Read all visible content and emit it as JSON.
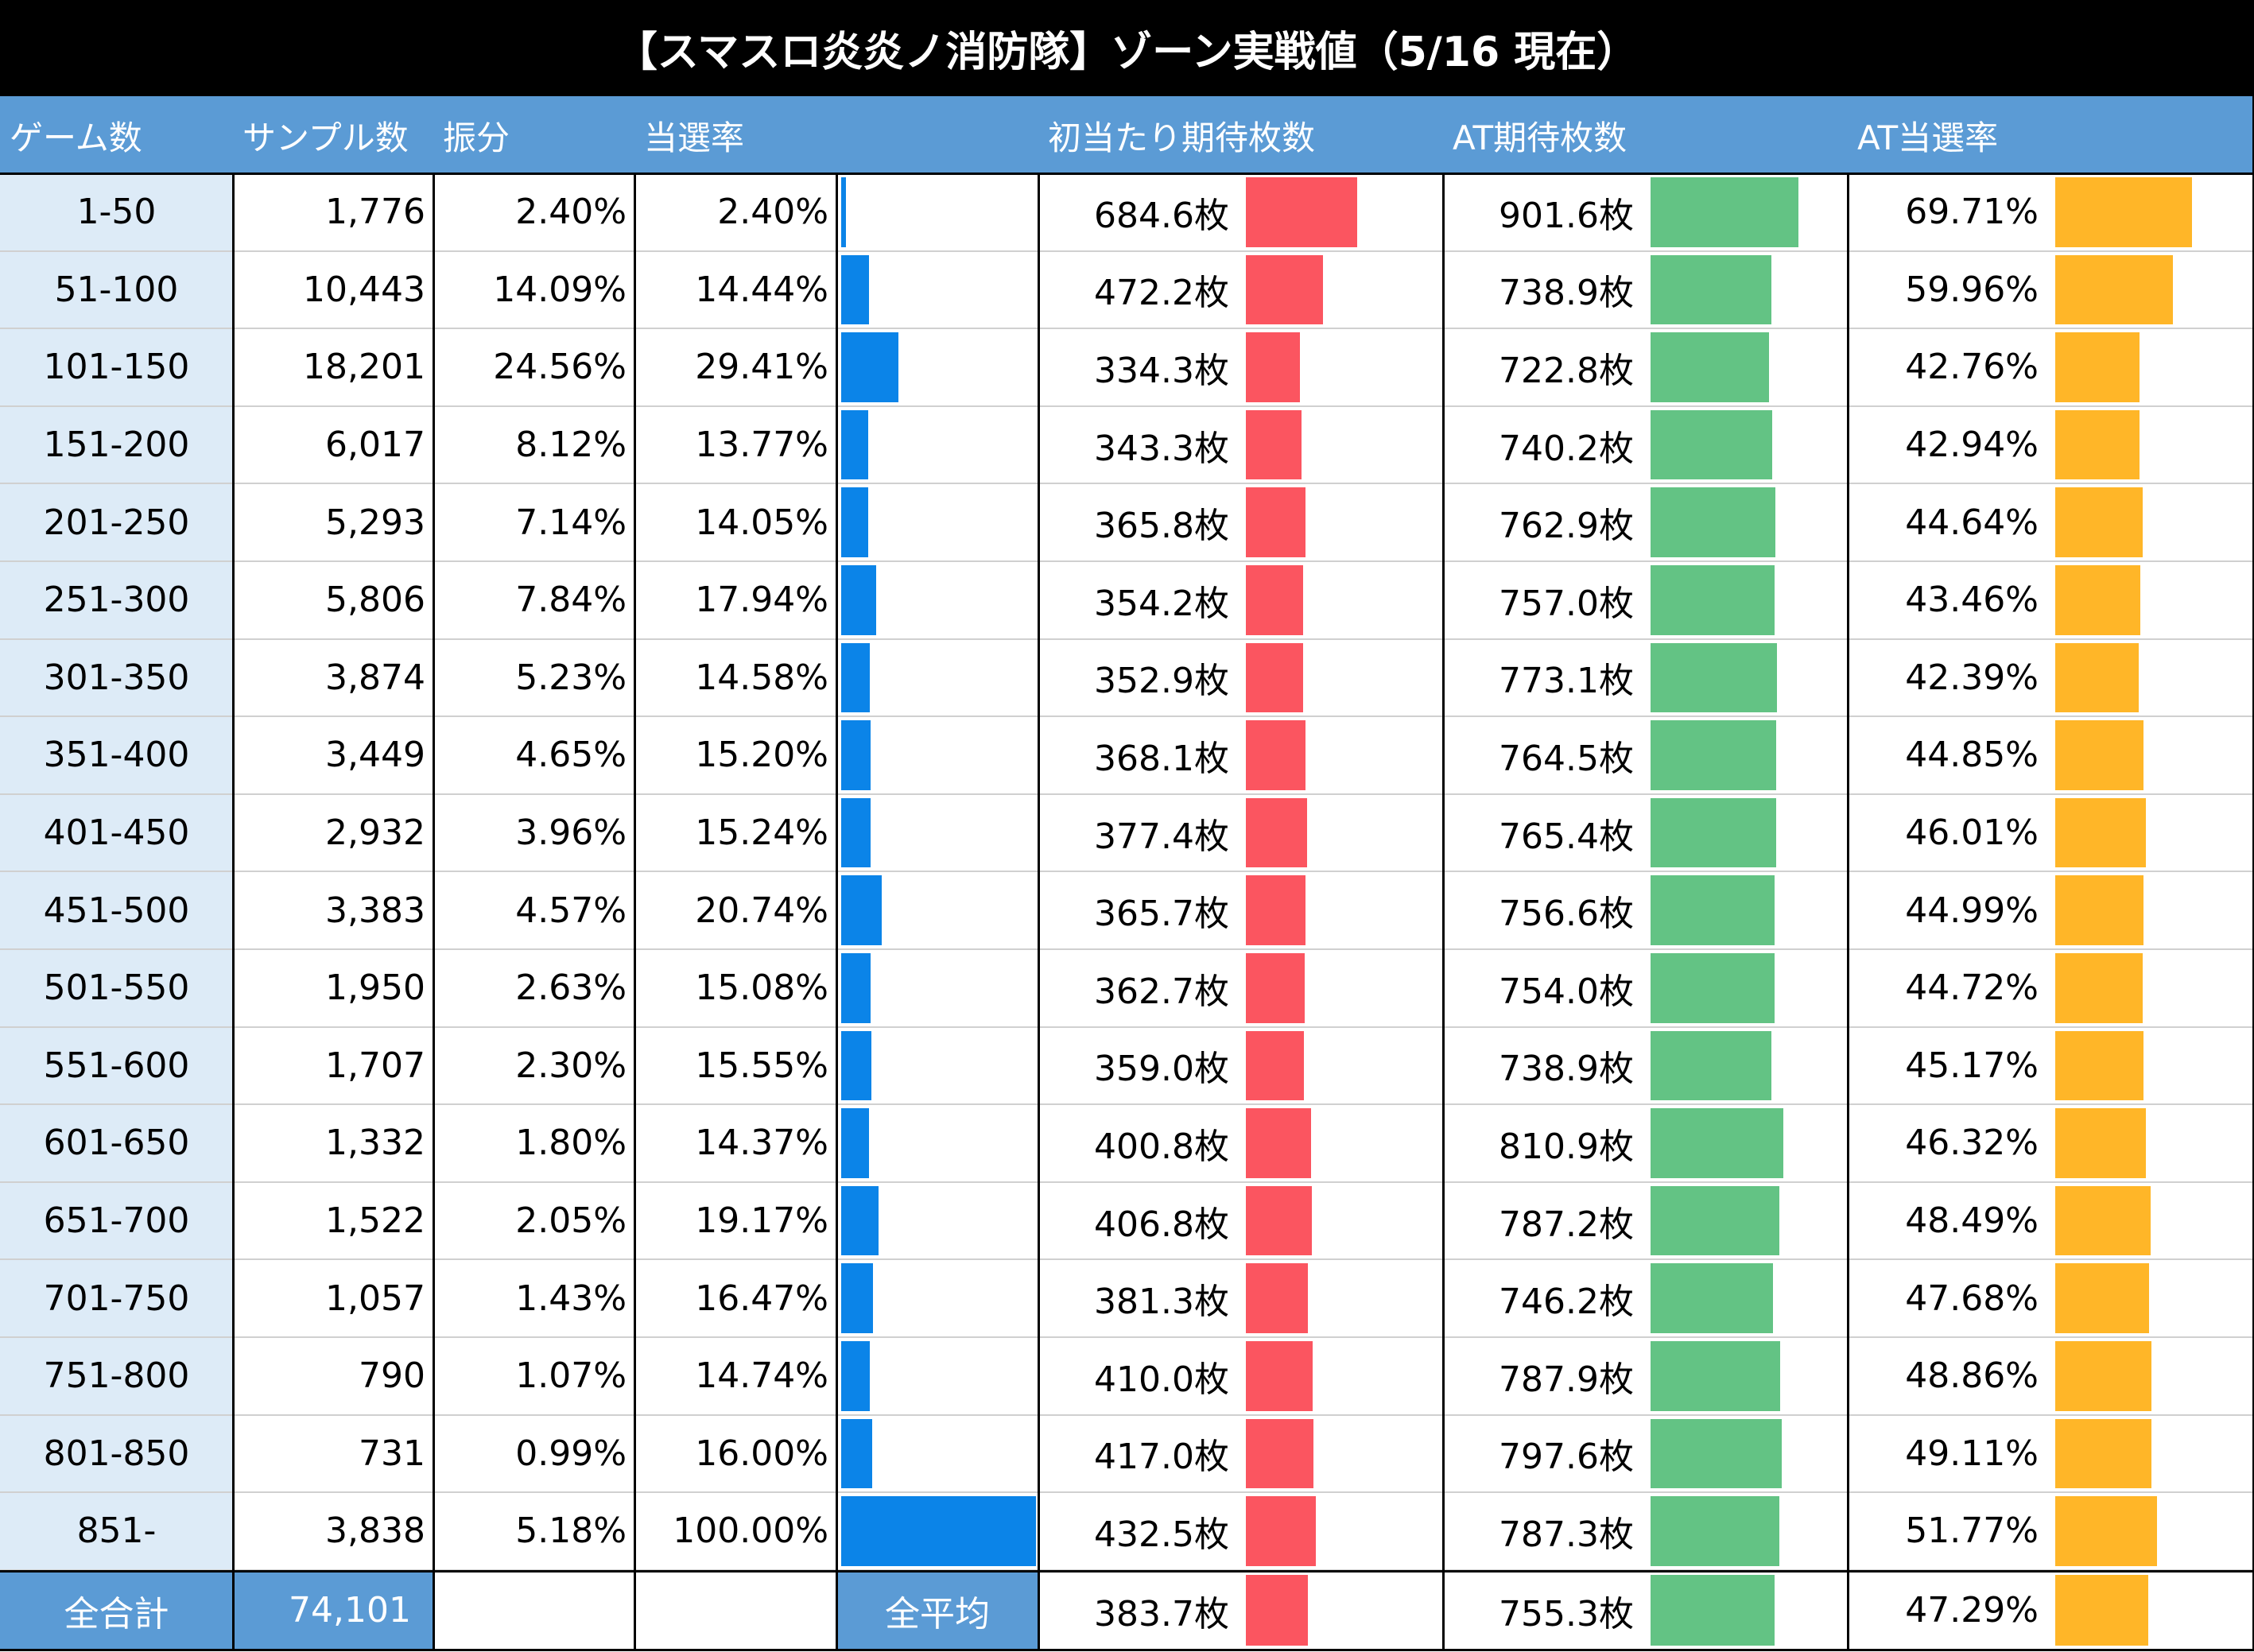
{
  "title": "【スマスロ炎炎ノ消防隊】ゾーン実戦値（5/16 現在）",
  "colors": {
    "header": "#5b9bd5",
    "zone_bg": "#ddebf7",
    "rate_bar": "#0b84e8",
    "first_bar": "#fb5560",
    "at_bar": "#63c384",
    "at_rate_bar": "#ffb628"
  },
  "headers": {
    "game": "ゲーム数",
    "sample": "サンプル数",
    "share": "振分",
    "rate": "当選率",
    "first": "初当たり期待枚数",
    "at": "AT期待枚数",
    "at_rate": "AT当選率"
  },
  "rows": [
    {
      "zone": "1-50",
      "sample": "1,776",
      "share": "2.40%",
      "rate": "2.40%",
      "first": "684.6枚",
      "at": "901.6枚",
      "at_rate": "69.71%"
    },
    {
      "zone": "51-100",
      "sample": "10,443",
      "share": "14.09%",
      "rate": "14.44%",
      "first": "472.2枚",
      "at": "738.9枚",
      "at_rate": "59.96%"
    },
    {
      "zone": "101-150",
      "sample": "18,201",
      "share": "24.56%",
      "rate": "29.41%",
      "first": "334.3枚",
      "at": "722.8枚",
      "at_rate": "42.76%"
    },
    {
      "zone": "151-200",
      "sample": "6,017",
      "share": "8.12%",
      "rate": "13.77%",
      "first": "343.3枚",
      "at": "740.2枚",
      "at_rate": "42.94%"
    },
    {
      "zone": "201-250",
      "sample": "5,293",
      "share": "7.14%",
      "rate": "14.05%",
      "first": "365.8枚",
      "at": "762.9枚",
      "at_rate": "44.64%"
    },
    {
      "zone": "251-300",
      "sample": "5,806",
      "share": "7.84%",
      "rate": "17.94%",
      "first": "354.2枚",
      "at": "757.0枚",
      "at_rate": "43.46%"
    },
    {
      "zone": "301-350",
      "sample": "3,874",
      "share": "5.23%",
      "rate": "14.58%",
      "first": "352.9枚",
      "at": "773.1枚",
      "at_rate": "42.39%"
    },
    {
      "zone": "351-400",
      "sample": "3,449",
      "share": "4.65%",
      "rate": "15.20%",
      "first": "368.1枚",
      "at": "764.5枚",
      "at_rate": "44.85%"
    },
    {
      "zone": "401-450",
      "sample": "2,932",
      "share": "3.96%",
      "rate": "15.24%",
      "first": "377.4枚",
      "at": "765.4枚",
      "at_rate": "46.01%"
    },
    {
      "zone": "451-500",
      "sample": "3,383",
      "share": "4.57%",
      "rate": "20.74%",
      "first": "365.7枚",
      "at": "756.6枚",
      "at_rate": "44.99%"
    },
    {
      "zone": "501-550",
      "sample": "1,950",
      "share": "2.63%",
      "rate": "15.08%",
      "first": "362.7枚",
      "at": "754.0枚",
      "at_rate": "44.72%"
    },
    {
      "zone": "551-600",
      "sample": "1,707",
      "share": "2.30%",
      "rate": "15.55%",
      "first": "359.0枚",
      "at": "738.9枚",
      "at_rate": "45.17%"
    },
    {
      "zone": "601-650",
      "sample": "1,332",
      "share": "1.80%",
      "rate": "14.37%",
      "first": "400.8枚",
      "at": "810.9枚",
      "at_rate": "46.32%"
    },
    {
      "zone": "651-700",
      "sample": "1,522",
      "share": "2.05%",
      "rate": "19.17%",
      "first": "406.8枚",
      "at": "787.2枚",
      "at_rate": "48.49%"
    },
    {
      "zone": "701-750",
      "sample": "1,057",
      "share": "1.43%",
      "rate": "16.47%",
      "first": "381.3枚",
      "at": "746.2枚",
      "at_rate": "47.68%"
    },
    {
      "zone": "751-800",
      "sample": "790",
      "share": "1.07%",
      "rate": "14.74%",
      "first": "410.0枚",
      "at": "787.9枚",
      "at_rate": "48.86%"
    },
    {
      "zone": "801-850",
      "sample": "731",
      "share": "0.99%",
      "rate": "16.00%",
      "first": "417.0枚",
      "at": "797.6枚",
      "at_rate": "49.11%"
    },
    {
      "zone": "851-",
      "sample": "3,838",
      "share": "5.18%",
      "rate": "100.00%",
      "first": "432.5枚",
      "at": "787.3枚",
      "at_rate": "51.77%"
    }
  ],
  "footer": {
    "total_label": "全合計",
    "total_sample": "74,101",
    "avg_label": "全平均",
    "avg_first": "383.7枚",
    "avg_at": "755.3枚",
    "avg_at_rate": "47.29%"
  },
  "chart_data": {
    "type": "table",
    "title": "【スマスロ炎炎ノ消防隊】ゾーン実戦値（5/16 現在）",
    "columns": [
      "ゲーム数",
      "サンプル数",
      "振分",
      "当選率",
      "初当たり期待枚数",
      "AT期待枚数",
      "AT当選率"
    ],
    "categories": [
      "1-50",
      "51-100",
      "101-150",
      "151-200",
      "201-250",
      "251-300",
      "301-350",
      "351-400",
      "401-450",
      "451-500",
      "501-550",
      "551-600",
      "601-650",
      "651-700",
      "701-750",
      "751-800",
      "801-850",
      "851-"
    ],
    "series": [
      {
        "name": "サンプル数",
        "values": [
          1776,
          10443,
          18201,
          6017,
          5293,
          5806,
          3874,
          3449,
          2932,
          3383,
          1950,
          1707,
          1332,
          1522,
          1057,
          790,
          731,
          3838
        ]
      },
      {
        "name": "振分",
        "values": [
          2.4,
          14.09,
          24.56,
          8.12,
          7.14,
          7.84,
          5.23,
          4.65,
          3.96,
          4.57,
          2.63,
          2.3,
          1.8,
          2.05,
          1.43,
          1.07,
          0.99,
          5.18
        ]
      },
      {
        "name": "当選率",
        "values": [
          2.4,
          14.44,
          29.41,
          13.77,
          14.05,
          17.94,
          14.58,
          15.2,
          15.24,
          20.74,
          15.08,
          15.55,
          14.37,
          19.17,
          16.47,
          14.74,
          16.0,
          100.0
        ]
      },
      {
        "name": "初当たり期待枚数",
        "values": [
          684.6,
          472.2,
          334.3,
          343.3,
          365.8,
          354.2,
          352.9,
          368.1,
          377.4,
          365.7,
          362.7,
          359.0,
          400.8,
          406.8,
          381.3,
          410.0,
          417.0,
          432.5
        ]
      },
      {
        "name": "AT期待枚数",
        "values": [
          901.6,
          738.9,
          722.8,
          740.2,
          762.9,
          757.0,
          773.1,
          764.5,
          765.4,
          756.6,
          754.0,
          738.9,
          810.9,
          787.2,
          746.2,
          787.9,
          797.6,
          787.3
        ]
      },
      {
        "name": "AT当選率",
        "values": [
          69.71,
          59.96,
          42.76,
          42.94,
          44.64,
          43.46,
          42.39,
          44.85,
          46.01,
          44.99,
          44.72,
          45.17,
          46.32,
          48.49,
          47.68,
          48.86,
          49.11,
          51.77
        ]
      }
    ],
    "averages": {
      "初当たり期待枚数": 383.7,
      "AT期待枚数": 755.3,
      "AT当選率": 47.29
    },
    "total_sample": 74101
  }
}
